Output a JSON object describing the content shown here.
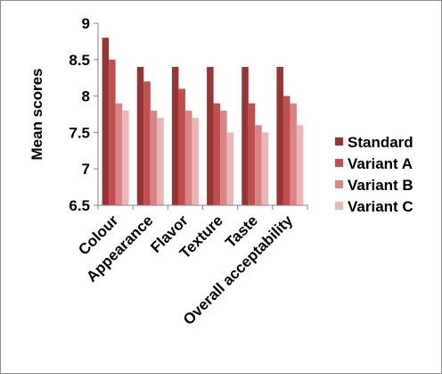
{
  "chart_data": {
    "type": "bar",
    "ylabel": "Mean scores",
    "xlabel": "",
    "ylim": [
      6.5,
      9
    ],
    "yticks": [
      6.5,
      7,
      7.5,
      8,
      8.5,
      9
    ],
    "ytick_labels": [
      "6.5",
      "7",
      "7.5",
      "8",
      "8.5",
      "9"
    ],
    "categories": [
      "Colour",
      "Appearance",
      "Flavor",
      "Texture",
      "Taste",
      "Overall acceptability"
    ],
    "series": [
      {
        "name": "Standard",
        "color": "#9b3334",
        "values": [
          8.8,
          8.4,
          8.4,
          8.4,
          8.4,
          8.4
        ]
      },
      {
        "name": "Variant A",
        "color": "#c0504d",
        "values": [
          8.5,
          8.2,
          8.1,
          7.9,
          7.9,
          8.0
        ]
      },
      {
        "name": "Variant B",
        "color": "#d78685",
        "values": [
          7.9,
          7.8,
          7.8,
          7.8,
          7.6,
          7.9
        ]
      },
      {
        "name": "Variant C",
        "color": "#e8b8b7",
        "values": [
          7.8,
          7.7,
          7.7,
          7.5,
          7.5,
          7.6
        ]
      }
    ],
    "grid": false,
    "legend_position": "right"
  }
}
